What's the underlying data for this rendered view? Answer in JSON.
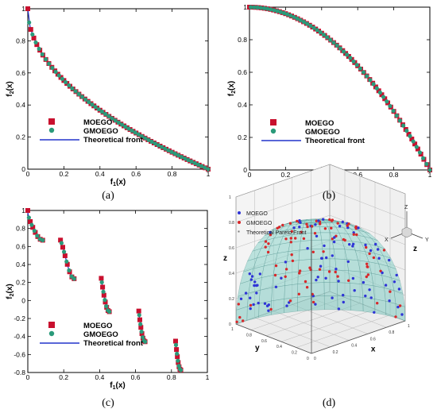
{
  "colors": {
    "moego": "#c8102e",
    "gmoego": "#2a9a7a",
    "front": "#2233cc",
    "moego3d": "#2f35d6",
    "gmoego3d": "#d7282a",
    "surface": "#7fcfca"
  },
  "chart_data": [
    {
      "id": "a",
      "type": "scatter",
      "caption": "(a)",
      "xlabel_main": "f",
      "xlabel_sub": "1",
      "xlabel_tail": "(x)",
      "ylabel_main": "f",
      "ylabel_sub": "2",
      "ylabel_tail": "(x)",
      "xlim": [
        0,
        1
      ],
      "ylim": [
        0,
        1
      ],
      "xticks": [
        "0",
        "0.2",
        "0.4",
        "0.6",
        "0.8",
        "1"
      ],
      "yticks": [
        "0",
        "0.2",
        "0.4",
        "0.6",
        "0.8",
        "1"
      ],
      "xtick_values": [
        0,
        0.2,
        0.4,
        0.6,
        0.8,
        1
      ],
      "ytick_values": [
        0,
        0.2,
        0.4,
        0.6,
        0.8,
        1
      ],
      "front": "f2 = 1 - sqrt(f1)",
      "x_segments": [
        [
          0,
          1
        ]
      ],
      "legend": [
        "MOEGO",
        "GMOEGO",
        "Theoretical front"
      ],
      "legend_position": "lower-left"
    },
    {
      "id": "b",
      "type": "scatter",
      "caption": "(b)",
      "xlabel_main": "f",
      "xlabel_sub": "1",
      "xlabel_tail": "(x)",
      "ylabel_main": "f",
      "ylabel_sub": "2",
      "ylabel_tail": "(x)",
      "xlim": [
        0,
        1
      ],
      "ylim": [
        0,
        1
      ],
      "xticks": [
        "0",
        "0.2",
        "0.4",
        "0.6",
        "0.8",
        "1"
      ],
      "yticks": [
        "0",
        "0.2",
        "0.4",
        "0.6",
        "0.8",
        "1"
      ],
      "xtick_values": [
        0,
        0.2,
        0.4,
        0.6,
        0.8,
        1
      ],
      "ytick_values": [
        0,
        0.2,
        0.4,
        0.6,
        0.8,
        1
      ],
      "front": "f2 = 1 - f1^2",
      "x_segments": [
        [
          0,
          1
        ]
      ],
      "legend": [
        "MOEGO",
        "GMOEGO",
        "Theoretical front"
      ],
      "legend_position": "lower-left"
    },
    {
      "id": "c",
      "type": "scatter",
      "caption": "(c)",
      "xlabel_main": "f",
      "xlabel_sub": "1",
      "xlabel_tail": "(x)",
      "ylabel_main": "f",
      "ylabel_sub": "2",
      "ylabel_tail": "(x)",
      "xlim": [
        0,
        1
      ],
      "ylim": [
        -0.8,
        1
      ],
      "xticks": [
        "0",
        "0.2",
        "0.4",
        "0.6",
        "0.8",
        "1"
      ],
      "yticks": [
        "-0.8",
        "-0.6",
        "-0.4",
        "-0.2",
        "0",
        "0.2",
        "0.4",
        "0.6",
        "0.8",
        "1"
      ],
      "xtick_values": [
        0,
        0.2,
        0.4,
        0.6,
        0.8,
        1
      ],
      "ytick_values": [
        -0.8,
        -0.6,
        -0.4,
        -0.2,
        0,
        0.2,
        0.4,
        0.6,
        0.8,
        1
      ],
      "front": "f2 = 1 - sqrt(f1) - f1*sin(10*pi*f1)",
      "x_segments": [
        [
          0,
          0.083
        ],
        [
          0.182,
          0.258
        ],
        [
          0.409,
          0.454
        ],
        [
          0.618,
          0.653
        ],
        [
          0.823,
          0.852
        ]
      ],
      "legend": [
        "MOEGO",
        "GMOEGO",
        "Theoretical front"
      ],
      "legend_position": "lower-left"
    },
    {
      "id": "d",
      "type": "scatter3d",
      "caption": "(d)",
      "axis_labels": {
        "x": "x",
        "y": "y",
        "z": "z"
      },
      "ticks": [
        "0",
        "0.2",
        "0.4",
        "0.6",
        "0.8",
        "1"
      ],
      "tick_values": [
        0,
        0.2,
        0.4,
        0.6,
        0.8,
        1
      ],
      "front": "x^2 + y^2 + z^2 = 1 (first octant)",
      "legend": [
        "MOEGO",
        "GMOEGO",
        "Theoretical Pareto Front"
      ],
      "legend_position": "top-left",
      "triad": {
        "x": "X",
        "y": "Y",
        "z": "Z"
      }
    }
  ]
}
